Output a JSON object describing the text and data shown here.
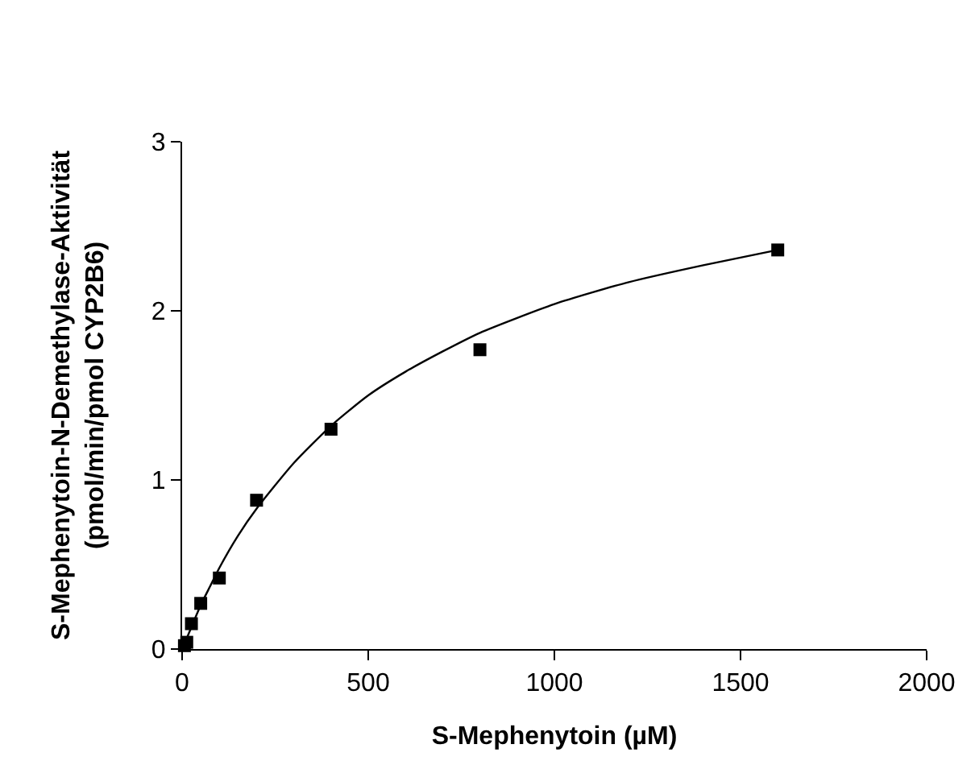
{
  "chart_data": {
    "type": "scatter",
    "xlabel": "S-Mephenytoin (µM)",
    "ylabel": "S-Mephenytoin-N-Demethylase-Aktivität\n(pmol/min/pmol CYP2B6)",
    "series": [
      {
        "color": "#000000",
        "marker": "square",
        "x": [
          6.25,
          12.5,
          25,
          50,
          100,
          200,
          400,
          800,
          1600
        ],
        "values": [
          0.02,
          0.04,
          0.15,
          0.27,
          0.42,
          0.88,
          1.3,
          1.77,
          2.36
        ]
      },
      {
        "type": "line",
        "color": "#000000",
        "marker": "none",
        "line_style": "solid",
        "x": [
          0,
          10,
          25,
          50,
          75,
          100,
          150,
          200,
          300,
          400,
          500,
          600,
          700,
          800,
          1000,
          1200,
          1400,
          1600
        ],
        "values": [
          0,
          0.05,
          0.13,
          0.26,
          0.37,
          0.48,
          0.67,
          0.83,
          1.1,
          1.32,
          1.5,
          1.64,
          1.76,
          1.87,
          2.04,
          2.17,
          2.27,
          2.36
        ]
      }
    ],
    "xlim": [
      0,
      2000
    ],
    "xticks": [
      0,
      500,
      1000,
      1500,
      2000
    ],
    "ylim": [
      0,
      3
    ],
    "yticks": [
      0,
      1,
      2,
      3
    ],
    "grid": false
  }
}
